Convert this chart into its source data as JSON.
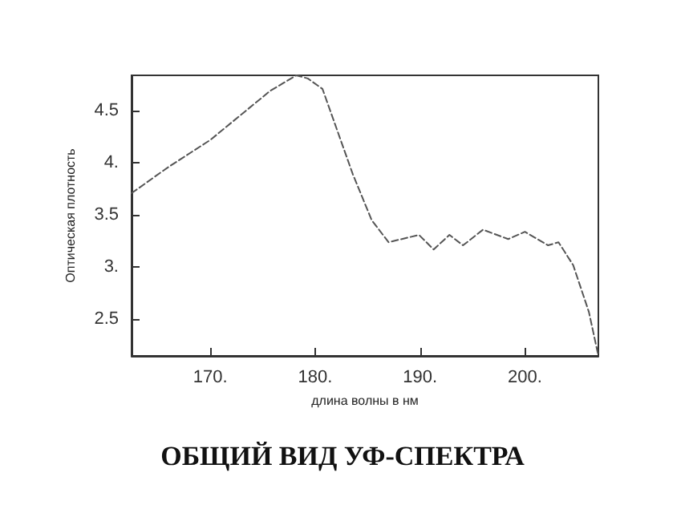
{
  "chart_data": {
    "type": "line",
    "title": "ОБЩИЙ ВИД УФ-СПЕКТРА",
    "xlabel": "длина волны в нм",
    "ylabel": "Оптическая плотность",
    "x": [
      162.5,
      166,
      170,
      175.7,
      178.2,
      179.3,
      180.7,
      183.6,
      185.4,
      187,
      189.9,
      191.3,
      192.8,
      194.1,
      196,
      198.4,
      200,
      202.2,
      203.2,
      204.6,
      206.1,
      207
    ],
    "series": [
      {
        "color": "#555555",
        "values": [
          3.71,
          3.96,
          4.22,
          4.69,
          4.84,
          4.81,
          4.71,
          3.89,
          3.45,
          3.24,
          3.31,
          3.17,
          3.31,
          3.21,
          3.36,
          3.27,
          3.34,
          3.21,
          3.24,
          3.02,
          2.57,
          2.15
        ]
      }
    ],
    "xlim": [
      162.5,
      207
    ],
    "ylim": [
      2.15,
      4.84
    ],
    "xticks": [
      {
        "value": 170,
        "label": "170."
      },
      {
        "value": 180,
        "label": "180."
      },
      {
        "value": 190,
        "label": "190."
      },
      {
        "value": 200,
        "label": "200."
      }
    ],
    "yticks": [
      {
        "value": 2.5,
        "label": "2.5"
      },
      {
        "value": 3,
        "label": "3."
      },
      {
        "value": 3.5,
        "label": "3.5"
      },
      {
        "value": 4,
        "label": "4."
      },
      {
        "value": 4.5,
        "label": "4.5"
      }
    ],
    "grid": false,
    "marker": "none",
    "line_style": "dashed"
  }
}
